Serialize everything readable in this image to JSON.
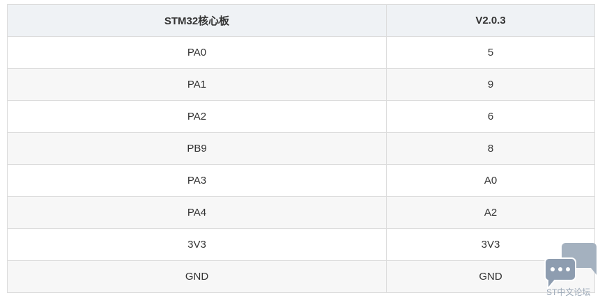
{
  "table": {
    "headers": [
      "STM32核心板",
      "V2.0.3"
    ],
    "rows": [
      [
        "PA0",
        "5"
      ],
      [
        "PA1",
        "9"
      ],
      [
        "PA2",
        "6"
      ],
      [
        "PB9",
        "8"
      ],
      [
        "PA3",
        "A0"
      ],
      [
        "PA4",
        "A2"
      ],
      [
        "3V3",
        "3V3"
      ],
      [
        "GND",
        "GND"
      ]
    ]
  },
  "watermark": {
    "text": "ST中文论坛",
    "icon": "chat-bubbles-icon",
    "color": "#9aa7b6"
  }
}
